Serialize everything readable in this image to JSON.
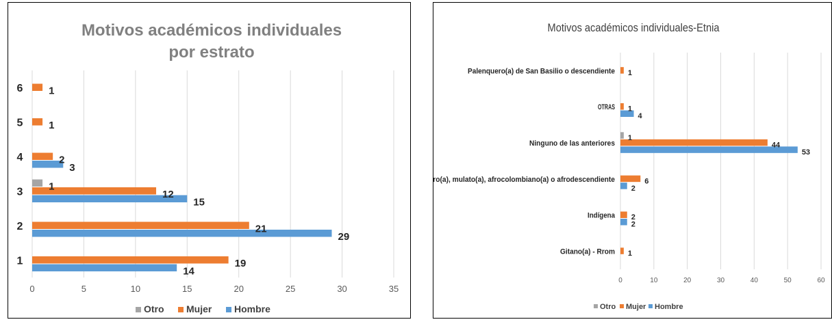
{
  "colors": {
    "otro": "#a5a5a5",
    "mujer": "#ed7d31",
    "hombre": "#5b9bd5",
    "grid": "#d9d9d9",
    "text": "#595959"
  },
  "chart_data": [
    {
      "type": "bar",
      "orientation": "horizontal",
      "title_lines": [
        "Motivos académicos individuales",
        "por estrato"
      ],
      "categories": [
        "1",
        "2",
        "3",
        "4",
        "5",
        "6"
      ],
      "series": [
        {
          "name": "Otro",
          "values": [
            null,
            null,
            1,
            null,
            null,
            null
          ]
        },
        {
          "name": "Mujer",
          "values": [
            19,
            21,
            12,
            2,
            1,
            1
          ]
        },
        {
          "name": "Hombre",
          "values": [
            14,
            29,
            15,
            3,
            null,
            null
          ]
        }
      ],
      "xlim": [
        0,
        35
      ],
      "xticks": [
        "0",
        "5",
        "10",
        "15",
        "20",
        "25",
        "30",
        "35"
      ],
      "grid": true,
      "legend": "bottom"
    },
    {
      "type": "bar",
      "orientation": "horizontal",
      "title_lines": [
        "Motivos académicos individuales-Etnia"
      ],
      "categories": [
        "Gitano(a) - Rrom",
        "Indígena",
        "Negro(a), mulato(a), afrocolombiano(a) o afrodescendiente",
        "Ninguno de las anteriores",
        "OTRAS",
        "Palenquero(a) de San Basilio o descendiente"
      ],
      "series": [
        {
          "name": "Otro",
          "values": [
            null,
            null,
            null,
            1,
            null,
            null
          ]
        },
        {
          "name": "Mujer",
          "values": [
            1,
            2,
            6,
            44,
            1,
            1
          ]
        },
        {
          "name": "Hombre",
          "values": [
            null,
            2,
            2,
            53,
            4,
            null
          ]
        }
      ],
      "xlim": [
        0,
        60
      ],
      "xticks": [
        "0",
        "10",
        "20",
        "30",
        "40",
        "50",
        "60"
      ],
      "grid": true,
      "legend": "bottom"
    }
  ]
}
